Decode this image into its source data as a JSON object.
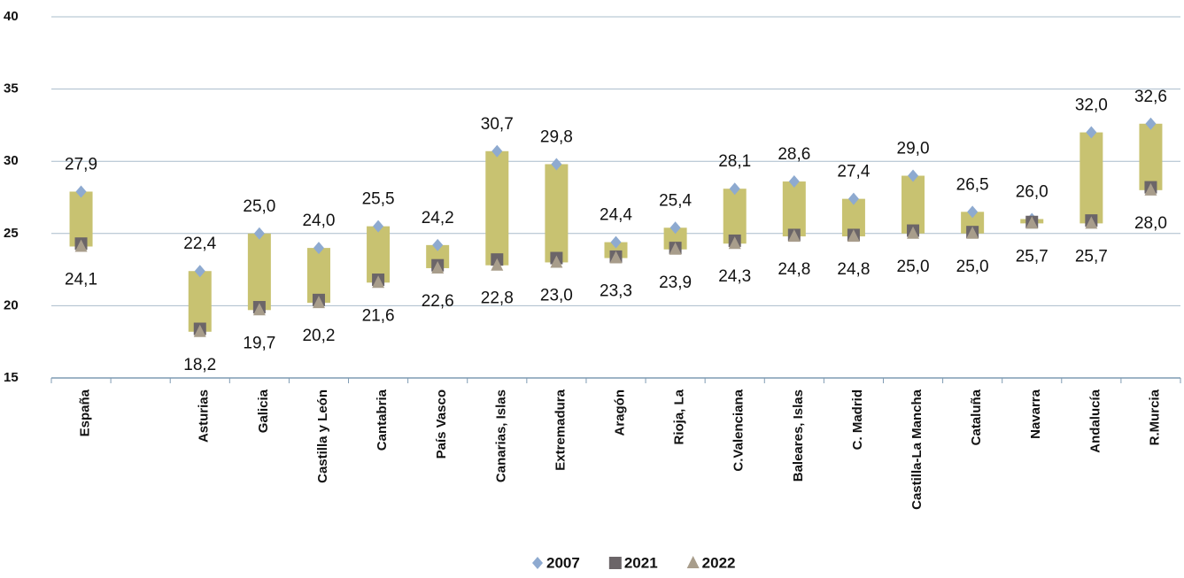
{
  "chart_data": {
    "type": "range",
    "categories": [
      "España",
      null,
      "Asturias",
      "Galicia",
      "Castilla y León",
      "Cantabria",
      "País Vasco",
      "Canarias, Islas",
      "Extremadura",
      "Aragón",
      "Rioja, La",
      "C.Valenciana",
      "Baleares, Islas",
      "C. Madrid",
      "Castilla-La Mancha",
      "Cataluña",
      "Navarra",
      "Andalucía",
      "R.Murcia"
    ],
    "series": [
      {
        "name": "2007",
        "color": "#8eaad0",
        "marker": "diamond",
        "values": [
          27.9,
          null,
          22.4,
          25.0,
          24.0,
          25.5,
          24.2,
          30.7,
          29.8,
          24.4,
          25.4,
          28.1,
          28.6,
          27.4,
          29.0,
          26.5,
          26.0,
          32.0,
          32.6
        ],
        "value_labels": [
          "27,9",
          null,
          "22,4",
          "25,0",
          "24,0",
          "25,5",
          "24,2",
          "30,7",
          "29,8",
          "24,4",
          "25,4",
          "28,1",
          "28,6",
          "27,4",
          "29,0",
          "26,5",
          "26,0",
          "32,0",
          "32,6"
        ]
      },
      {
        "name": "2021",
        "color": "#6b6568",
        "marker": "square",
        "values": [
          24.3,
          null,
          18.4,
          19.9,
          20.4,
          21.8,
          22.8,
          23.2,
          23.3,
          23.4,
          24.0,
          24.5,
          24.9,
          24.9,
          25.2,
          25.1,
          25.8,
          25.9,
          28.2
        ]
      },
      {
        "name": "2022",
        "color": "#a89d8b",
        "marker": "triangle",
        "values": [
          24.1,
          null,
          18.2,
          19.7,
          20.2,
          21.6,
          22.6,
          22.8,
          23.0,
          23.3,
          23.9,
          24.3,
          24.8,
          24.8,
          25.0,
          25.0,
          25.7,
          25.7,
          28.0
        ],
        "value_labels": [
          "24,1",
          null,
          "18,2",
          "19,7",
          "20,2",
          "21,6",
          "22,6",
          "22,8",
          "23,0",
          "23,3",
          "23,9",
          "24,3",
          "24,8",
          "24,8",
          "25,0",
          "25,0",
          "25,7",
          "25,7",
          "28,0"
        ]
      }
    ],
    "bar_color": "#c8c271",
    "ylim": [
      15,
      40
    ],
    "yticks": [
      15,
      20,
      25,
      30,
      35,
      40
    ],
    "grid": true,
    "legend": "bottom"
  }
}
